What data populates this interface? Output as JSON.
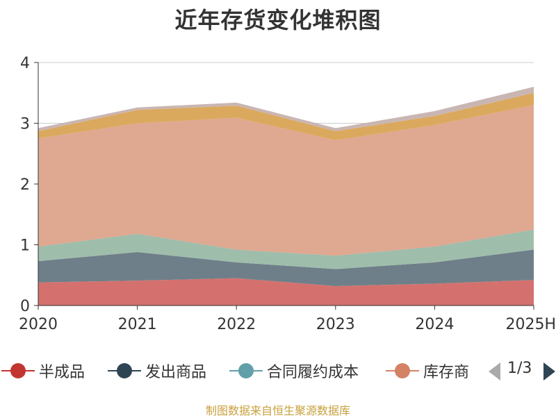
{
  "title": "近年存货变化堆积图",
  "footer": "制图数据来自恒生聚源数据库",
  "legend": {
    "items": [
      {
        "label": "半成品",
        "color": "#c23531"
      },
      {
        "label": "发出商品",
        "color": "#2f4554"
      },
      {
        "label": "合同履约成本",
        "color": "#61a0a8"
      },
      {
        "label": "库存商",
        "color": "#d48265"
      }
    ],
    "page_text": "1/3"
  },
  "chart_data": {
    "type": "area",
    "stacked": true,
    "title": "近年存货变化堆积图",
    "xlabel": "",
    "ylabel": "",
    "categories": [
      "2020",
      "2021",
      "2022",
      "2023",
      "2024",
      "2025H"
    ],
    "ylim": [
      0,
      4
    ],
    "yticks": [
      0,
      1,
      2,
      3,
      4
    ],
    "grid": true,
    "legend_position": "bottom",
    "series": [
      {
        "name": "半成品",
        "color": "#d4716e",
        "values": [
          0.38,
          0.41,
          0.45,
          0.32,
          0.36,
          0.42
        ]
      },
      {
        "name": "发出商品",
        "color": "#6e7f89",
        "values": [
          0.35,
          0.47,
          0.26,
          0.28,
          0.35,
          0.5
        ]
      },
      {
        "name": "合同履约成本",
        "color": "#9fbdab",
        "values": [
          0.24,
          0.3,
          0.21,
          0.22,
          0.26,
          0.33
        ]
      },
      {
        "name": "库存商",
        "color": "#dfa891",
        "values": [
          1.78,
          1.82,
          2.17,
          1.9,
          2.0,
          2.05
        ]
      },
      {
        "name": "",
        "color": "#dba95e",
        "values": [
          0.12,
          0.22,
          0.2,
          0.15,
          0.15,
          0.2
        ]
      },
      {
        "name": "",
        "color": "#c9b6b3",
        "values": [
          0.05,
          0.04,
          0.05,
          0.05,
          0.08,
          0.1
        ]
      }
    ]
  }
}
